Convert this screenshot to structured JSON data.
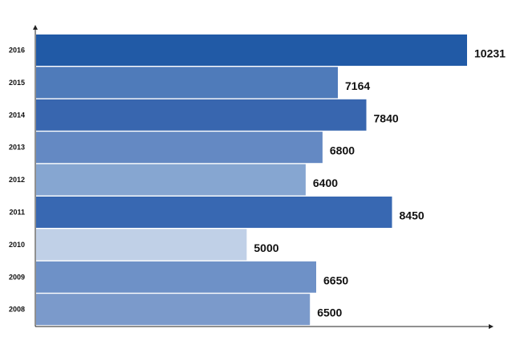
{
  "chart_data": {
    "type": "bar",
    "orientation": "horizontal",
    "title": "",
    "xlabel": "",
    "ylabel": "",
    "categories": [
      "2016",
      "2015",
      "2014",
      "2013",
      "2012",
      "2011",
      "2010",
      "2009",
      "2008"
    ],
    "values": [
      10231,
      7164,
      7840,
      6800,
      6400,
      8450,
      5000,
      6650,
      6500
    ],
    "xlim": [
      0,
      10231
    ],
    "grid": false,
    "legend": "none",
    "data_labels": true,
    "bar_colors": [
      "#215aa6",
      "#4f7bba",
      "#3866af",
      "#6489c3",
      "#86a6d1",
      "#3868b2",
      "#c0d0e7",
      "#6e91c7",
      "#7b9acb"
    ],
    "axis_color": "#222222"
  }
}
